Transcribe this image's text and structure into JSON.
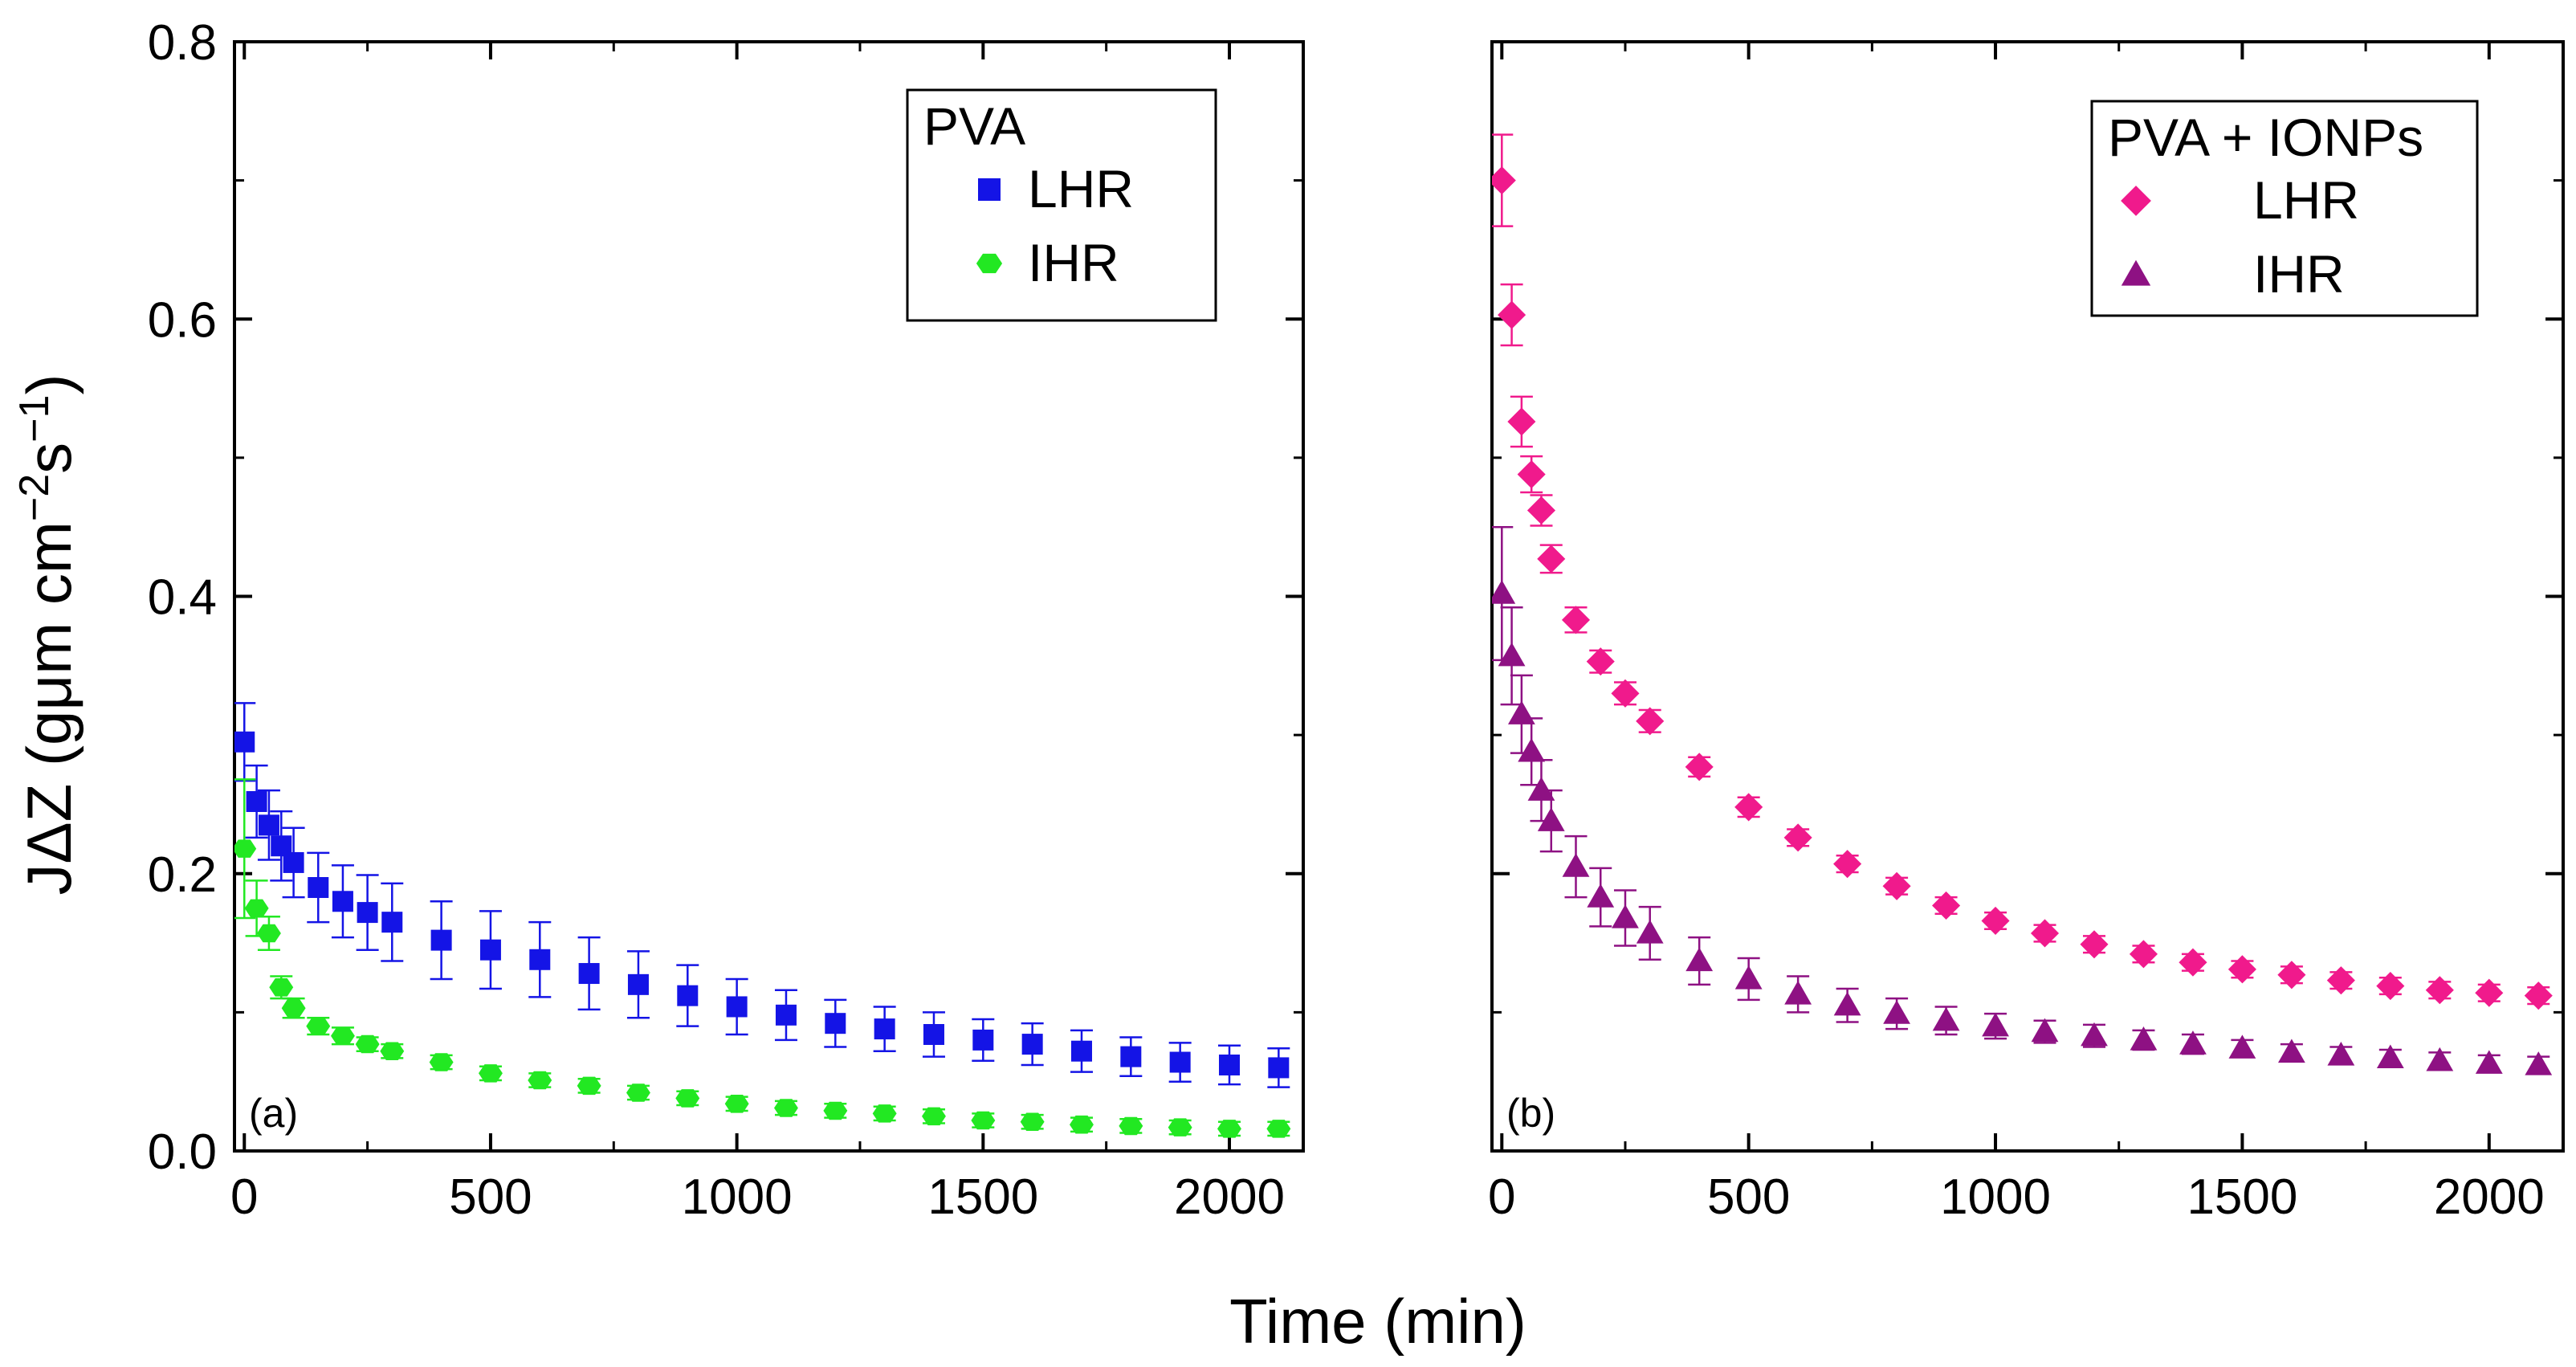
{
  "figure": {
    "ylabel_main": "JΔZ (gμm cm",
    "ylabel_exp1": "−2",
    "ylabel_mid": "s",
    "ylabel_exp2": "−1",
    "ylabel_end": ")",
    "xlabel": "Time (min)"
  },
  "chart_data": [
    {
      "type": "scatter",
      "panel_label": "(a)",
      "legend_title": "PVA",
      "legend_position": "top-right",
      "xlim": [
        -20,
        2150
      ],
      "ylim": [
        0,
        0.8
      ],
      "xticks": [
        "0",
        "500",
        "1000",
        "1500",
        "2000"
      ],
      "yticks": [
        "0.0",
        "0.2",
        "0.4",
        "0.6",
        "0.8"
      ],
      "xtick_values": [
        0,
        500,
        1000,
        1500,
        2000
      ],
      "ytick_values": [
        0,
        0.2,
        0.4,
        0.6,
        0.8
      ],
      "series": [
        {
          "name": "LHR",
          "marker": "square",
          "color": "#1414e6",
          "x": [
            0,
            25,
            50,
            75,
            100,
            150,
            200,
            250,
            300,
            400,
            500,
            600,
            700,
            800,
            900,
            1000,
            1100,
            1200,
            1300,
            1400,
            1500,
            1600,
            1700,
            1800,
            1900,
            2000,
            2100
          ],
          "y": [
            0.295,
            0.252,
            0.235,
            0.22,
            0.208,
            0.19,
            0.18,
            0.172,
            0.165,
            0.152,
            0.145,
            0.138,
            0.128,
            0.12,
            0.112,
            0.104,
            0.098,
            0.092,
            0.088,
            0.084,
            0.08,
            0.077,
            0.072,
            0.068,
            0.064,
            0.062,
            0.06
          ],
          "err": [
            0.028,
            0.026,
            0.025,
            0.025,
            0.025,
            0.025,
            0.026,
            0.027,
            0.028,
            0.028,
            0.028,
            0.027,
            0.026,
            0.024,
            0.022,
            0.02,
            0.018,
            0.017,
            0.016,
            0.016,
            0.015,
            0.015,
            0.015,
            0.014,
            0.014,
            0.014,
            0.014
          ]
        },
        {
          "name": "IHR",
          "marker": "hexagon",
          "color": "#22e822",
          "x": [
            0,
            25,
            50,
            75,
            100,
            150,
            200,
            250,
            300,
            400,
            500,
            600,
            700,
            800,
            900,
            1000,
            1100,
            1200,
            1300,
            1400,
            1500,
            1600,
            1700,
            1800,
            1900,
            2000,
            2100
          ],
          "y": [
            0.218,
            0.175,
            0.157,
            0.118,
            0.103,
            0.09,
            0.083,
            0.077,
            0.072,
            0.064,
            0.056,
            0.051,
            0.047,
            0.042,
            0.038,
            0.034,
            0.031,
            0.029,
            0.027,
            0.025,
            0.022,
            0.021,
            0.019,
            0.018,
            0.017,
            0.016,
            0.016
          ],
          "err": [
            0.05,
            0.02,
            0.012,
            0.008,
            0.007,
            0.006,
            0.006,
            0.005,
            0.005,
            0.005,
            0.005,
            0.005,
            0.005,
            0.005,
            0.005,
            0.005,
            0.005,
            0.005,
            0.005,
            0.005,
            0.005,
            0.005,
            0.005,
            0.005,
            0.005,
            0.005,
            0.005
          ]
        }
      ]
    },
    {
      "type": "scatter",
      "panel_label": "(b)",
      "legend_title": "PVA + IONPs",
      "legend_position": "top-right",
      "xlim": [
        -20,
        2150
      ],
      "ylim": [
        0,
        0.8
      ],
      "xticks": [
        "0",
        "500",
        "1000",
        "1500",
        "2000"
      ],
      "yticks": [],
      "xtick_values": [
        0,
        500,
        1000,
        1500,
        2000
      ],
      "ytick_values": [
        0,
        0.2,
        0.4,
        0.6,
        0.8
      ],
      "series": [
        {
          "name": "LHR",
          "marker": "diamond",
          "color": "#f01a8c",
          "x": [
            0,
            20,
            40,
            60,
            80,
            100,
            150,
            200,
            250,
            300,
            400,
            500,
            600,
            700,
            800,
            900,
            1000,
            1100,
            1200,
            1300,
            1400,
            1500,
            1600,
            1700,
            1800,
            1900,
            2000,
            2100
          ],
          "y": [
            0.7,
            0.603,
            0.526,
            0.488,
            0.462,
            0.427,
            0.383,
            0.353,
            0.33,
            0.31,
            0.277,
            0.248,
            0.226,
            0.207,
            0.191,
            0.177,
            0.166,
            0.157,
            0.149,
            0.142,
            0.136,
            0.131,
            0.127,
            0.123,
            0.119,
            0.116,
            0.114,
            0.112
          ],
          "err": [
            0.033,
            0.022,
            0.018,
            0.013,
            0.011,
            0.01,
            0.009,
            0.008,
            0.008,
            0.008,
            0.007,
            0.007,
            0.006,
            0.006,
            0.006,
            0.006,
            0.006,
            0.006,
            0.006,
            0.006,
            0.006,
            0.006,
            0.006,
            0.006,
            0.006,
            0.006,
            0.006,
            0.006
          ]
        },
        {
          "name": "IHR",
          "marker": "triangle",
          "color": "#8e1183",
          "x": [
            0,
            20,
            40,
            60,
            80,
            100,
            150,
            200,
            250,
            300,
            400,
            500,
            600,
            700,
            800,
            900,
            1000,
            1100,
            1200,
            1300,
            1400,
            1500,
            1600,
            1700,
            1800,
            1900,
            2000,
            2100
          ],
          "y": [
            0.402,
            0.357,
            0.315,
            0.288,
            0.26,
            0.238,
            0.205,
            0.183,
            0.168,
            0.157,
            0.137,
            0.124,
            0.113,
            0.105,
            0.099,
            0.094,
            0.09,
            0.086,
            0.083,
            0.08,
            0.077,
            0.074,
            0.071,
            0.069,
            0.067,
            0.065,
            0.063,
            0.062
          ],
          "err": [
            0.048,
            0.035,
            0.028,
            0.024,
            0.022,
            0.022,
            0.022,
            0.021,
            0.02,
            0.019,
            0.017,
            0.015,
            0.013,
            0.012,
            0.011,
            0.01,
            0.009,
            0.008,
            0.008,
            0.007,
            0.007,
            0.006,
            0.006,
            0.006,
            0.006,
            0.006,
            0.006,
            0.006
          ]
        }
      ]
    }
  ]
}
